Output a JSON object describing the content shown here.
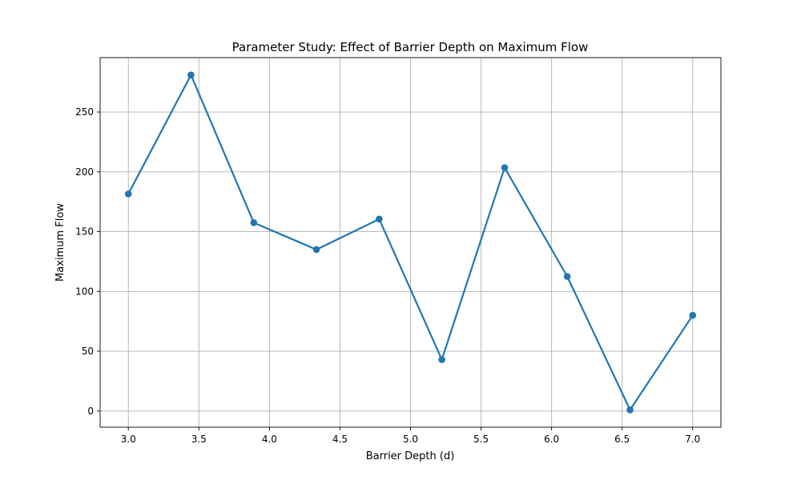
{
  "chart_data": {
    "type": "line",
    "title": "Parameter Study: Effect of Barrier Depth on Maximum Flow",
    "xlabel": "Barrier Depth (d)",
    "ylabel": "Maximum Flow",
    "x": [
      3.0,
      3.444,
      3.889,
      4.333,
      4.778,
      5.222,
      5.667,
      6.111,
      6.556,
      7.0
    ],
    "series": [
      {
        "values": [
          181.5,
          281.0,
          157.5,
          135.0,
          160.5,
          43.0,
          203.5,
          112.5,
          1.0,
          80.0
        ],
        "color": "#1f77b4"
      }
    ],
    "xlim": [
      2.8,
      7.2
    ],
    "ylim": [
      -13.5,
      295.5
    ],
    "xticks": [
      3.0,
      3.5,
      4.0,
      4.5,
      5.0,
      5.5,
      6.0,
      6.5,
      7.0
    ],
    "xtick_labels": [
      "3.0",
      "3.5",
      "4.0",
      "4.5",
      "5.0",
      "5.5",
      "6.0",
      "6.5",
      "7.0"
    ],
    "yticks": [
      0,
      50,
      100,
      150,
      200,
      250
    ],
    "ytick_labels": [
      "0",
      "50",
      "100",
      "150",
      "200",
      "250"
    ],
    "grid": true,
    "marker": "circle"
  }
}
